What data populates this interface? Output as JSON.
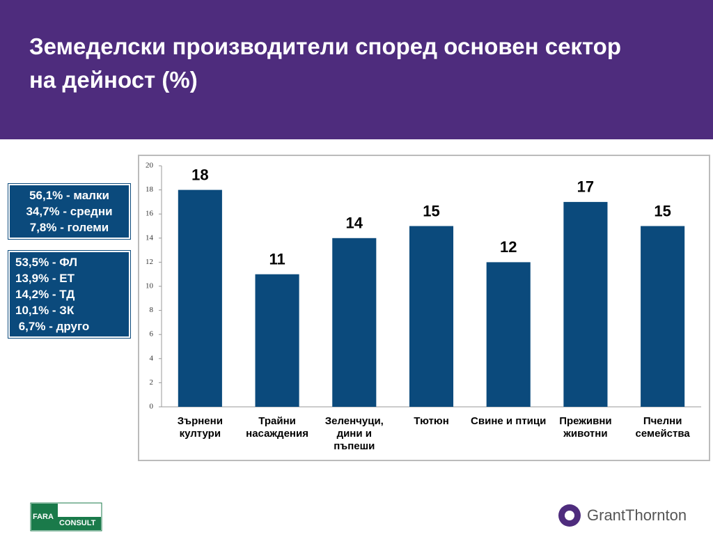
{
  "header": {
    "title_lines": [
      "Земеделски производители според основен сектор",
      "на дейност (%)"
    ]
  },
  "boxes": [
    {
      "lines": [
        "56,1% - малки",
        "34,7% - средни",
        "7,8% - големи"
      ]
    },
    {
      "lines": [
        "53,5% - ФЛ",
        "13,9% - ЕТ",
        "14,2% - ТД",
        "10,1% - ЗК",
        " 6,7% - друго"
      ]
    }
  ],
  "logos": {
    "left": [
      "FARA",
      "CONSULT"
    ],
    "right": "GrantThornton"
  },
  "chart_data": {
    "type": "bar",
    "categories": [
      "Зърнени култури",
      "Трайни насаждения",
      "Зеленчуци, дини и пъпеши",
      "Тютюн",
      "Свине и птици",
      "Преживни животни",
      "Пчелни семейства"
    ],
    "values": [
      18,
      11,
      14,
      15,
      12,
      17,
      15
    ],
    "color": "#0b4a7c",
    "ylim": [
      0,
      20
    ],
    "yticks": [
      0,
      2,
      4,
      6,
      8,
      10,
      12,
      14,
      16,
      18,
      20
    ],
    "grid": false
  }
}
